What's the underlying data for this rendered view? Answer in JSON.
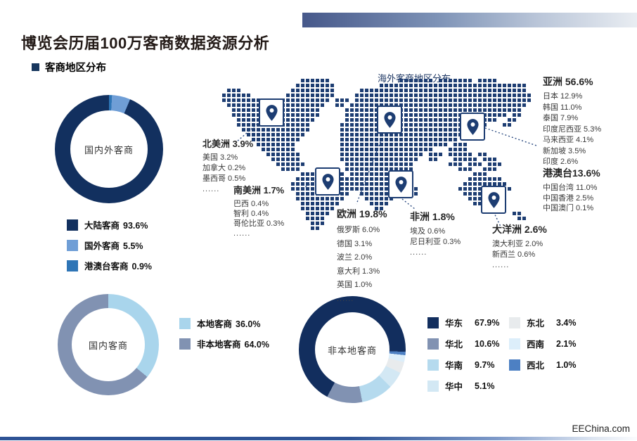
{
  "header": {
    "title": "博览会历届100万客商数据资源分析",
    "section": "客商地区分布"
  },
  "map_title": "海外客商地区分布",
  "watermark": "EEChina.com",
  "chart_data": [
    {
      "id": "donut-domestic-foreign",
      "type": "pie",
      "center_label": "国内外客商",
      "slices": [
        {
          "label": "大陆客商",
          "value": 93.6,
          "value_label": "93.6%",
          "color": "#12305f"
        },
        {
          "label": "国外客商",
          "value": 5.5,
          "value_label": "5.5%",
          "color": "#6f9ed6"
        },
        {
          "label": "港澳台客商",
          "value": 0.9,
          "value_label": "0.9%",
          "color": "#2e75b6"
        }
      ]
    },
    {
      "id": "donut-domestic",
      "type": "pie",
      "center_label": "国内客商",
      "slices": [
        {
          "label": "本地客商",
          "value": 36.0,
          "value_label": "36.0%",
          "color": "#a9d5ec"
        },
        {
          "label": "非本地客商",
          "value": 64.0,
          "value_label": "64.0%",
          "color": "#8192b2"
        }
      ]
    },
    {
      "id": "donut-nonlocal",
      "type": "pie",
      "center_label": "非本地客商",
      "slices": [
        {
          "label": "华东",
          "value": 67.9,
          "value_label": "67.9%",
          "color": "#122e5e"
        },
        {
          "label": "华北",
          "value": 10.6,
          "value_label": "10.6%",
          "color": "#8192b2"
        },
        {
          "label": "华南",
          "value": 9.7,
          "value_label": "9.7%",
          "color": "#b5daee"
        },
        {
          "label": "华中",
          "value": 5.1,
          "value_label": "5.1%",
          "color": "#d3e8f4"
        },
        {
          "label": "东北",
          "value": 3.4,
          "value_label": "3.4%",
          "color": "#e8ebed"
        },
        {
          "label": "西南",
          "value": 2.1,
          "value_label": "2.1%",
          "color": "#dceefa"
        },
        {
          "label": "西北",
          "value": 1.0,
          "value_label": "1.0%",
          "color": "#4d80c3"
        }
      ]
    },
    {
      "id": "overseas-map",
      "type": "map",
      "title": "海外客商地区分布",
      "regions": [
        {
          "name": "北美洲",
          "share": 3.9,
          "share_label": "北美洲 3.9%",
          "items": [
            "美国 3.2%",
            "加拿大 0.2%",
            "墨西哥 0.5%",
            "......"
          ]
        },
        {
          "name": "南美洲",
          "share": 1.7,
          "share_label": "南美洲 1.7%",
          "items": [
            "巴西 0.4%",
            "智利 0.4%",
            "哥伦比亚 0.3%",
            "......"
          ]
        },
        {
          "name": "欧洲",
          "share": 19.8,
          "share_label": "欧洲 19.8%",
          "items": [
            "俄罗斯 6.0%",
            "德国 3.1%",
            "波兰 2.0%",
            "意大利 1.3%",
            "英国 1.0%",
            "......"
          ]
        },
        {
          "name": "非洲",
          "share": 1.8,
          "share_label": "非洲 1.8%",
          "items": [
            "埃及 0.6%",
            "尼日利亚 0.3%",
            "......"
          ]
        },
        {
          "name": "亚洲",
          "share": 56.6,
          "share_label": "亚洲 56.6%",
          "items": [
            "日本 12.9%",
            "韩国 11.0%",
            "泰国 7.9%",
            "印度尼西亚 5.3%",
            "马来西亚 4.1%",
            "新加坡 3.5%",
            "印度 2.6%",
            "......"
          ]
        },
        {
          "name": "港澳台",
          "share": 13.6,
          "share_label": "港澳台13.6%",
          "items": [
            "中国台湾 11.0%",
            "中国香港 2.5%",
            "中国澳门 0.1%"
          ]
        },
        {
          "name": "大洋洲",
          "share": 2.6,
          "share_label": "大洋洲 2.6%",
          "items": [
            "澳大利亚 2.0%",
            "新西兰 0.6%",
            "......"
          ]
        }
      ]
    }
  ]
}
